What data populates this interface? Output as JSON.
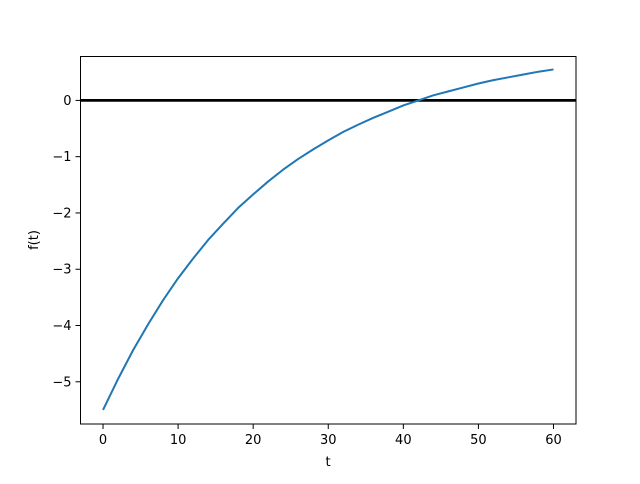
{
  "figure": {
    "background": "#ffffff"
  },
  "chart_data": {
    "type": "line",
    "title": "",
    "xlabel": "t",
    "ylabel": "f(t)",
    "xlim": [
      -3,
      63
    ],
    "ylim": [
      -5.75,
      0.78
    ],
    "grid": false,
    "legend": null,
    "axis_color": "#000000",
    "xticks": [
      {
        "v": 0,
        "label": "0"
      },
      {
        "v": 10,
        "label": "10"
      },
      {
        "v": 20,
        "label": "20"
      },
      {
        "v": 30,
        "label": "30"
      },
      {
        "v": 40,
        "label": "40"
      },
      {
        "v": 50,
        "label": "50"
      },
      {
        "v": 60,
        "label": "60"
      }
    ],
    "yticks": [
      {
        "v": 0,
        "label": "0"
      },
      {
        "v": -1,
        "label": "−1"
      },
      {
        "v": -2,
        "label": "−2"
      },
      {
        "v": -3,
        "label": "−3"
      },
      {
        "v": -4,
        "label": "−4"
      },
      {
        "v": -5,
        "label": "−5"
      }
    ],
    "hline": {
      "y": 0,
      "color": "#000000",
      "width": 2.7
    },
    "series": [
      {
        "name": "f(t)",
        "color": "#1f77b4",
        "width": 2,
        "x": [
          0,
          2,
          4,
          6,
          8,
          10,
          12,
          14,
          16,
          18,
          20,
          22,
          24,
          26,
          28,
          30,
          32,
          34,
          36,
          38,
          40,
          42,
          44,
          46,
          48,
          50,
          52,
          54,
          56,
          58,
          60
        ],
        "y": [
          -5.5,
          -4.95,
          -4.44,
          -3.98,
          -3.55,
          -3.16,
          -2.81,
          -2.48,
          -2.19,
          -1.91,
          -1.67,
          -1.44,
          -1.23,
          -1.04,
          -0.87,
          -0.71,
          -0.56,
          -0.43,
          -0.31,
          -0.2,
          -0.09,
          0.0,
          0.09,
          0.16,
          0.23,
          0.3,
          0.36,
          0.41,
          0.46,
          0.51,
          0.55
        ]
      }
    ]
  }
}
